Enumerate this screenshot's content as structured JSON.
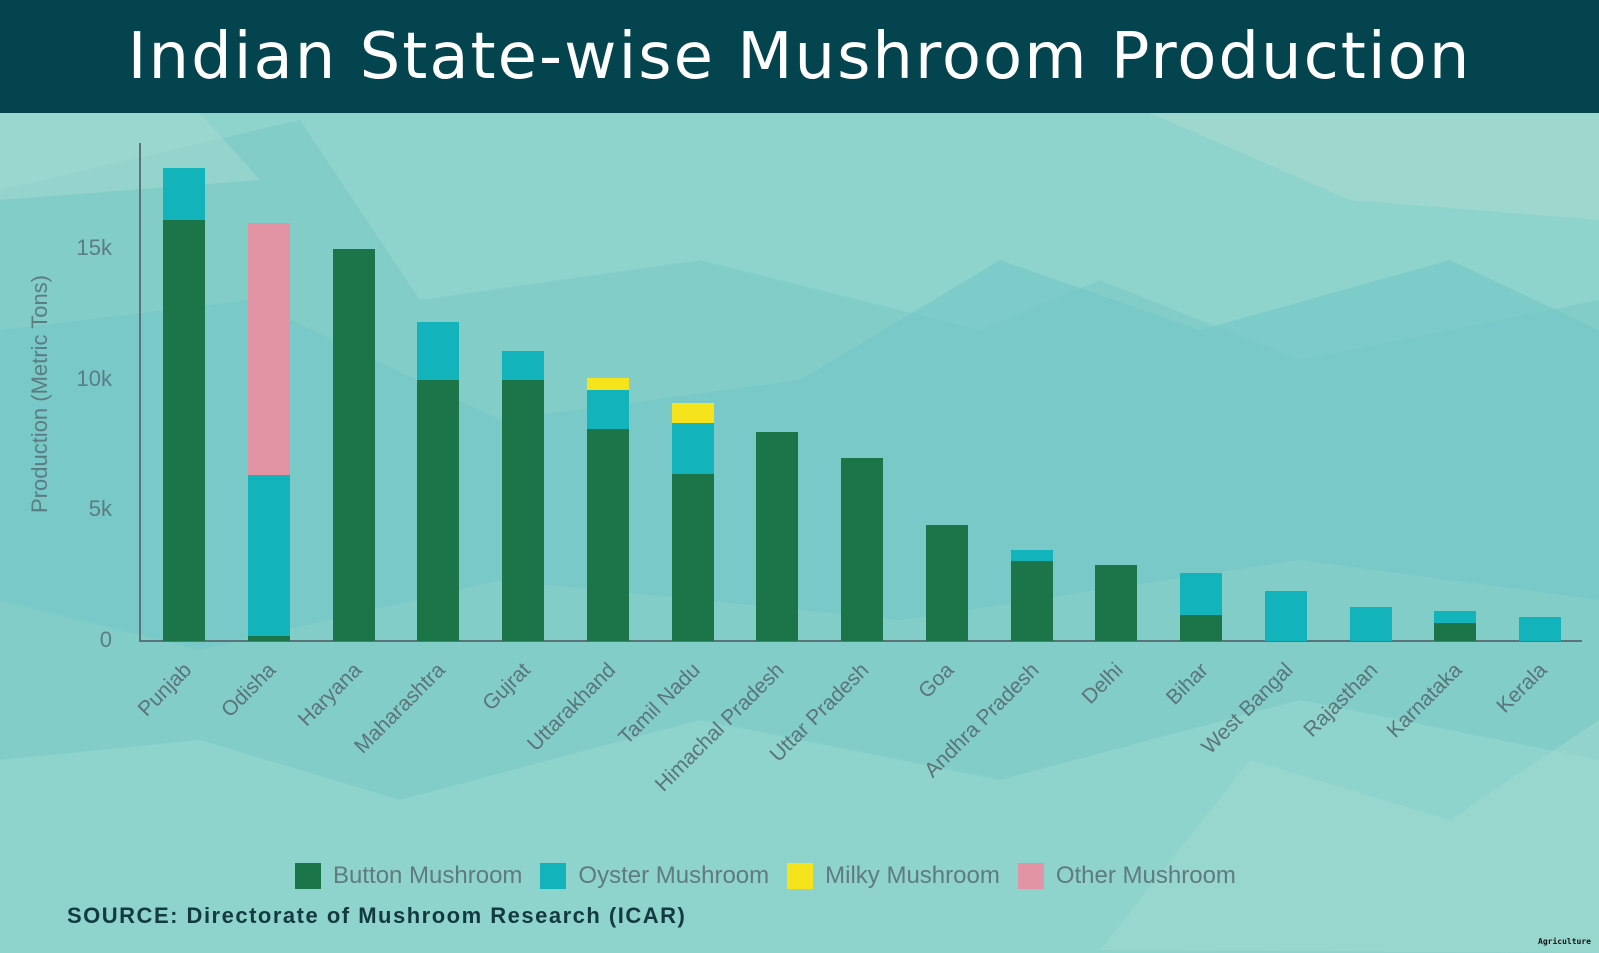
{
  "header": {
    "title": "Indian State-wise Mushroom Production"
  },
  "footer": {
    "source": "SOURCE: Directorate of Mushroom Research (ICAR)",
    "watermark": "Agriculture"
  },
  "colors": {
    "header_bg": "#04444f",
    "background": "#8fd4cc",
    "button": "#1b7549",
    "oyster": "#13b3bb",
    "milky": "#f5e31c",
    "other": "#e394a4",
    "axis": "#5b7479"
  },
  "chart_data": {
    "type": "bar",
    "stacked": true,
    "title": "Indian State-wise Mushroom Production",
    "xlabel": "",
    "ylabel": "Production (Metric Tons)",
    "ylim": [
      0,
      19000
    ],
    "yticks": [
      0,
      5000,
      10000,
      15000
    ],
    "ytick_labels": [
      "0",
      "5k",
      "10k",
      "15k"
    ],
    "grid": false,
    "legend_position": "bottom",
    "categories": [
      "Punjab",
      "Odisha",
      "Haryana",
      "Maharashtra",
      "Gujrat",
      "Uttarakhand",
      "Tamil Nadu",
      "Himachal Pradesh",
      "Uttar Pradesh",
      "Goa",
      "Andhra Pradesh",
      "Delhi",
      "Bihar",
      "West Bangal",
      "Rajasthan",
      "Karnataka",
      "Kerala"
    ],
    "series": [
      {
        "name": "Button Mushroom",
        "color": "#1b7549",
        "values": [
          16100,
          200,
          15000,
          10000,
          10000,
          8100,
          6400,
          8000,
          7000,
          4450,
          3050,
          2900,
          1000,
          0,
          0,
          700,
          0
        ]
      },
      {
        "name": "Oyster Mushroom",
        "color": "#13b3bb",
        "values": [
          2000,
          6150,
          0,
          2200,
          1100,
          1500,
          1950,
          0,
          0,
          0,
          450,
          0,
          1600,
          1900,
          1300,
          450,
          900
        ]
      },
      {
        "name": "Milky Mushroom",
        "color": "#f5e31c",
        "values": [
          0,
          0,
          0,
          0,
          0,
          450,
          750,
          0,
          0,
          0,
          0,
          0,
          0,
          0,
          0,
          0,
          0
        ]
      },
      {
        "name": "Other Mushroom",
        "color": "#e394a4",
        "values": [
          0,
          9650,
          0,
          0,
          0,
          0,
          0,
          0,
          0,
          0,
          0,
          0,
          0,
          0,
          0,
          0,
          0
        ]
      }
    ]
  }
}
